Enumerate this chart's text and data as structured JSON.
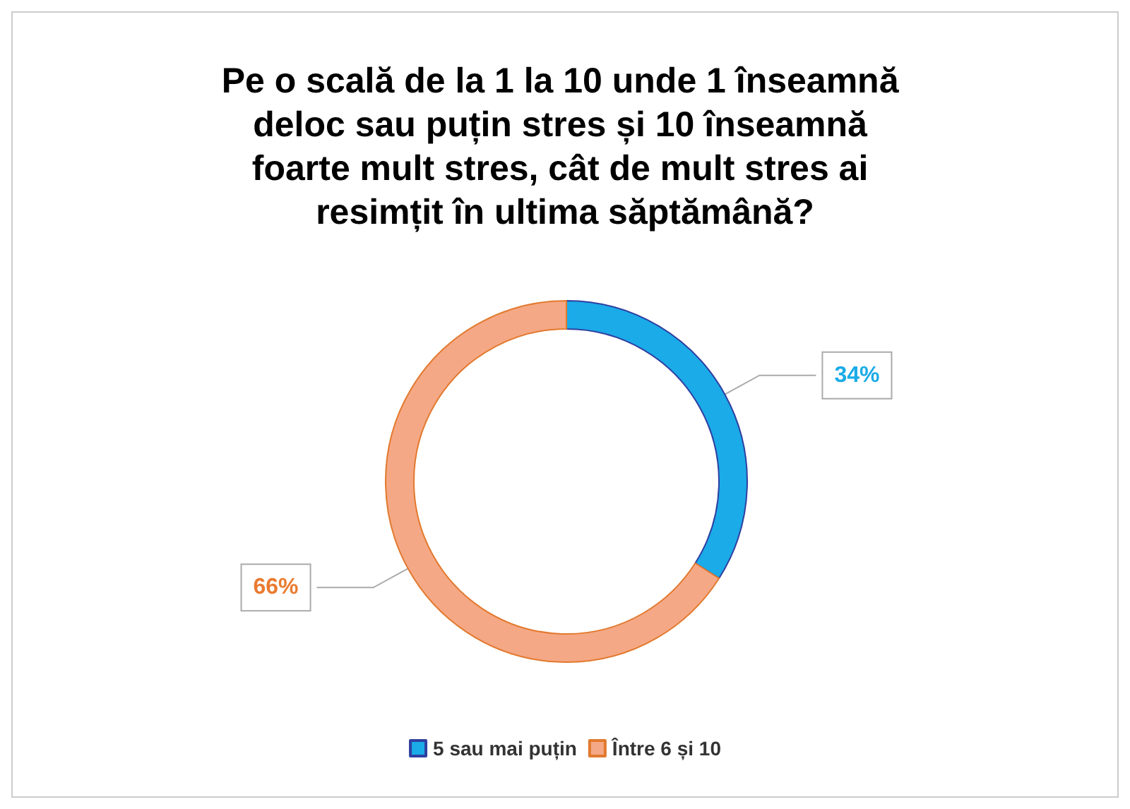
{
  "chart_data": {
    "type": "donut",
    "title": "Pe o scală de la 1 la 10 unde 1 înseamnă deloc sau puțin stres și 10 înseamnă foarte mult stres, cât de mult stres ai resimțit în ultima săptămână?",
    "categories": [
      "5 sau mai puțin",
      "Între 6 și 10"
    ],
    "values": [
      34,
      66
    ],
    "colors": [
      "#1aabe8",
      "#f5a885"
    ],
    "value_labels": [
      "34%",
      "66%"
    ],
    "legend": "bottom"
  }
}
